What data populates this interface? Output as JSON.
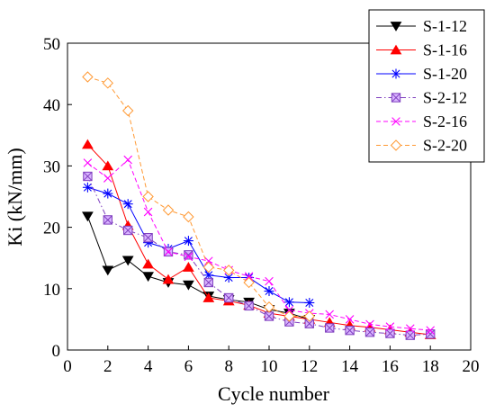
{
  "chart_data": {
    "type": "line",
    "xlabel": "Cycle number",
    "ylabel": "Ki (kN/mm)",
    "xlim": [
      0,
      20
    ],
    "ylim": [
      0,
      50
    ],
    "xticks": [
      0,
      2,
      4,
      6,
      8,
      10,
      12,
      14,
      16,
      18,
      20
    ],
    "yticks": [
      0,
      10,
      20,
      30,
      40,
      50
    ],
    "grid": false,
    "legend_position": "top-right",
    "series": [
      {
        "name": "S-1-12",
        "color": "#000000",
        "line": "solid",
        "marker": "triangle-down-filled",
        "x": [
          1,
          2,
          3,
          4,
          5,
          6,
          7,
          8,
          9,
          10,
          11,
          12
        ],
        "y": [
          21.8,
          13.0,
          14.6,
          12.0,
          11.0,
          10.6,
          8.8,
          8.2,
          7.8,
          6.6,
          6.0,
          5.0
        ]
      },
      {
        "name": "S-1-16",
        "color": "#ff0000",
        "line": "solid",
        "marker": "triangle-up-filled",
        "x": [
          1,
          2,
          3,
          4,
          5,
          6,
          7,
          8,
          9,
          10,
          11,
          12,
          13,
          14,
          15,
          16,
          17,
          18
        ],
        "y": [
          33.5,
          30.0,
          20.3,
          14.0,
          11.5,
          13.5,
          8.5,
          8.0,
          7.3,
          6.0,
          5.5,
          5.0,
          4.5,
          4.0,
          3.7,
          3.3,
          2.9,
          2.5
        ]
      },
      {
        "name": "S-1-20",
        "color": "#0000ff",
        "line": "solid",
        "marker": "asterisk",
        "x": [
          1,
          2,
          3,
          4,
          5,
          6,
          7,
          8,
          9,
          10,
          11,
          12
        ],
        "y": [
          26.5,
          25.5,
          23.8,
          17.5,
          16.5,
          17.8,
          12.2,
          11.8,
          11.8,
          9.6,
          7.8,
          7.7
        ]
      },
      {
        "name": "S-2-12",
        "color": "#7f3fbf",
        "line": "dash-dot",
        "marker": "square-crossed",
        "x": [
          1,
          2,
          3,
          4,
          5,
          6,
          7,
          8,
          9,
          10,
          11,
          12,
          13,
          14,
          15,
          16,
          17,
          18
        ],
        "y": [
          28.3,
          21.2,
          19.5,
          18.3,
          16.0,
          15.5,
          11.0,
          8.5,
          7.2,
          5.5,
          4.6,
          4.3,
          3.6,
          3.2,
          2.9,
          2.7,
          2.4,
          2.6
        ]
      },
      {
        "name": "S-2-16",
        "color": "#ff00ff",
        "line": "dashed",
        "marker": "x",
        "x": [
          1,
          2,
          3,
          4,
          5,
          6,
          7,
          8,
          9,
          10,
          11,
          12,
          13,
          14,
          15,
          16,
          17,
          18
        ],
        "y": [
          30.5,
          28.0,
          31.0,
          22.5,
          16.0,
          15.2,
          14.5,
          13.0,
          12.0,
          11.2,
          6.5,
          6.0,
          5.8,
          5.0,
          4.2,
          3.8,
          3.5,
          3.2
        ]
      },
      {
        "name": "S-2-20",
        "color": "#ff9933",
        "line": "dashed",
        "marker": "diamond-open",
        "x": [
          1,
          2,
          3,
          4,
          5,
          6,
          7,
          8,
          9,
          10,
          11,
          12
        ],
        "y": [
          44.5,
          43.5,
          39.0,
          25.0,
          22.8,
          21.7,
          13.5,
          13.0,
          11.0,
          7.0,
          5.5,
          5.5
        ]
      }
    ]
  }
}
